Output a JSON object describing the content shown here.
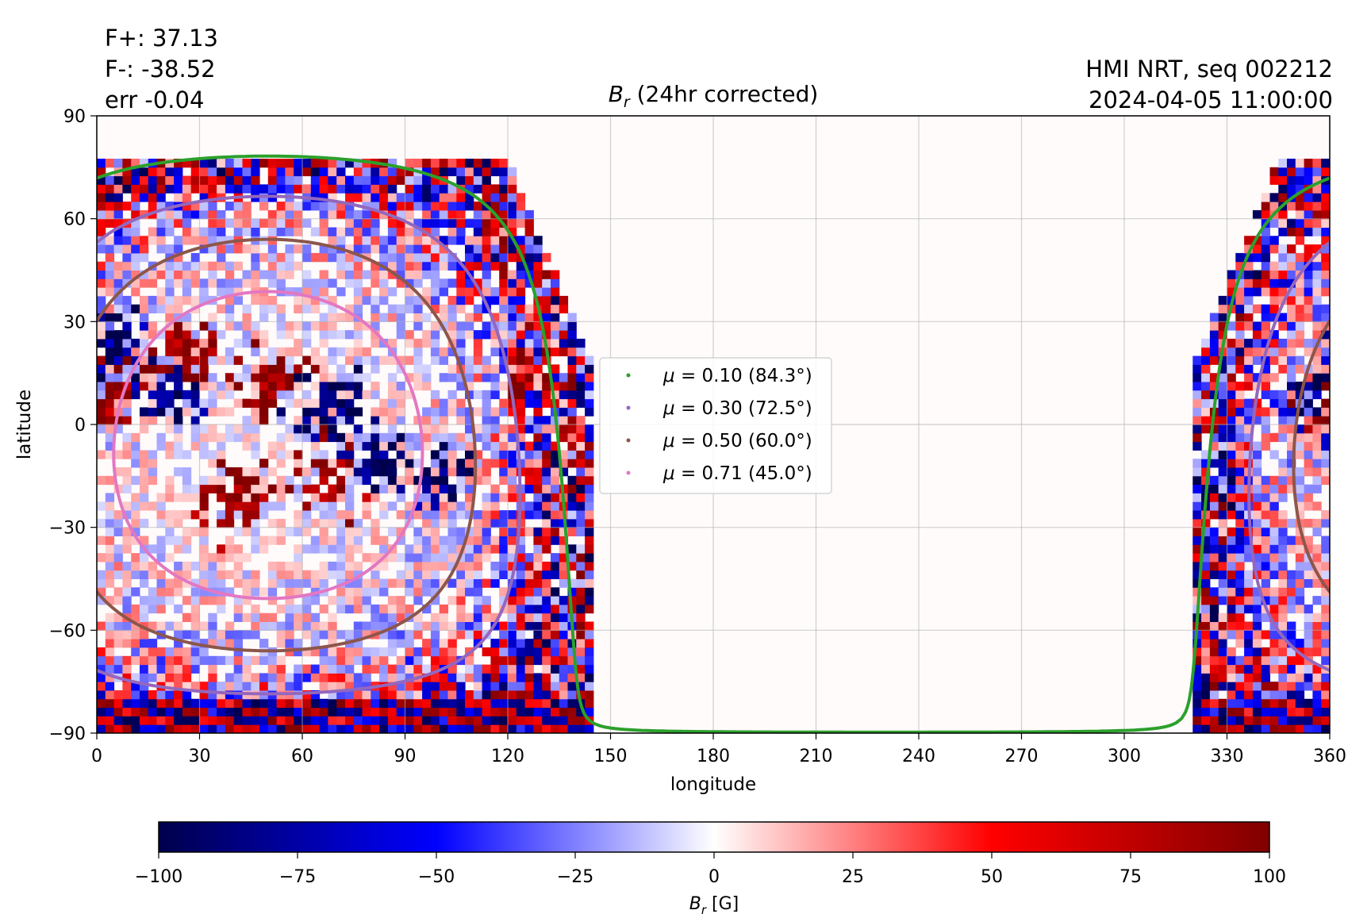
{
  "annotations": {
    "flux_pos": "F+: 37.13",
    "flux_neg": "F-: -38.52",
    "flux_err": "err -0.04",
    "instrument": "HMI NRT, seq 002212",
    "datetime": "2024-04-05 11:00:00"
  },
  "chart_data": {
    "type": "heatmap",
    "title_symbol": "B",
    "title_subscript": "r",
    "title_rest": " (24hr corrected)",
    "xlabel": "longitude",
    "ylabel": "latitude",
    "xlim": [
      0,
      360
    ],
    "ylim": [
      -90,
      90
    ],
    "xticks": [
      0,
      30,
      60,
      90,
      120,
      150,
      180,
      210,
      240,
      270,
      300,
      330,
      360
    ],
    "yticks": [
      -90,
      -60,
      -30,
      0,
      30,
      60,
      90
    ],
    "ytick_labels": [
      "−90",
      "−60",
      "−30",
      "0",
      "30",
      "60",
      "90"
    ],
    "grid": true,
    "legend_placement": "center",
    "colormap": "seismic",
    "colorbar": {
      "label_symbol": "B",
      "label_subscript": "r",
      "label_unit": " [G]",
      "range": [
        -100,
        100
      ],
      "ticks": [
        -100,
        -75,
        -50,
        -25,
        0,
        25,
        50,
        75,
        100
      ],
      "tick_labels": [
        "−100",
        "−75",
        "−50",
        "−25",
        "0",
        "25",
        "50",
        "75",
        "100"
      ]
    },
    "observed_disk": {
      "center_longitude": 50,
      "center_latitude": -6,
      "empty_longitude_range": [
        145,
        320
      ],
      "active_regions": [
        {
          "lon": 25,
          "lat": 20,
          "polarity": "positive"
        },
        {
          "lon": 22,
          "lat": 10,
          "polarity": "negative"
        },
        {
          "lon": 50,
          "lat": 12,
          "polarity": "positive"
        },
        {
          "lon": 68,
          "lat": 5,
          "polarity": "negative"
        },
        {
          "lon": 40,
          "lat": -22,
          "polarity": "positive"
        },
        {
          "lon": 68,
          "lat": -15,
          "polarity": "positive"
        },
        {
          "lon": 82,
          "lat": -12,
          "polarity": "negative"
        },
        {
          "lon": 100,
          "lat": -15,
          "polarity": "negative"
        },
        {
          "lon": 5,
          "lat": 25,
          "polarity": "negative"
        },
        {
          "lon": 2,
          "lat": 8,
          "polarity": "positive"
        },
        {
          "lon": 128,
          "lat": 13,
          "polarity": "positive"
        },
        {
          "lon": 355,
          "lat": 8,
          "polarity": "negative"
        },
        {
          "lon": 325,
          "lat": -18,
          "polarity": "negative"
        }
      ]
    },
    "series": [
      {
        "name": "μ = 0.10 (84.3°)",
        "mu": "0.10",
        "angle": "84.3°",
        "color": "#2ca02c"
      },
      {
        "name": "μ = 0.30 (72.5°)",
        "mu": "0.30",
        "angle": "72.5°",
        "color": "#9467bd"
      },
      {
        "name": "μ = 0.50 (60.0°)",
        "mu": "0.50",
        "angle": "60.0°",
        "color": "#8c564b"
      },
      {
        "name": "μ = 0.71 (45.0°)",
        "mu": "0.71",
        "angle": "45.0°",
        "color": "#e377c2"
      }
    ]
  }
}
